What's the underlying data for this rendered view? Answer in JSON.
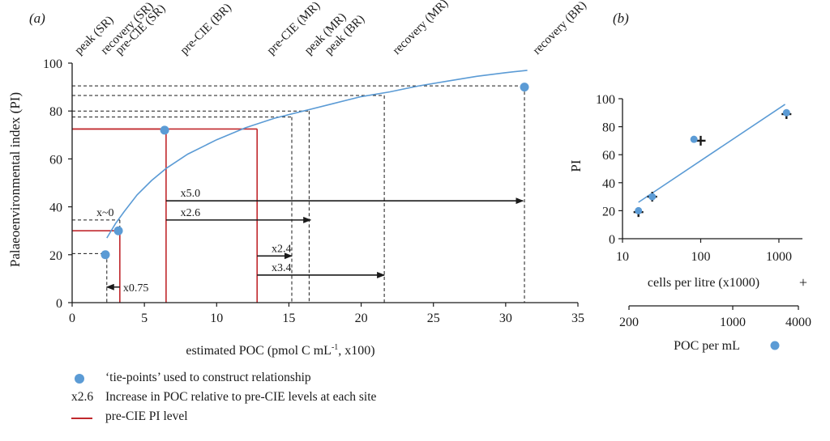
{
  "colors": {
    "curve": "#5b9bd5",
    "pre_cie": "#c0282d",
    "arrow": "#1a1a1a",
    "dashed": "#1a1a1a"
  },
  "chart_data": [
    {
      "type": "line",
      "panel_label": "(a)",
      "xlabel_main": "estimated POC (pmol C mL",
      "xlabel_sup": "-1",
      "xlabel_tail": ", x100)",
      "ylabel": "Palaeoenvironmental index (PI)",
      "xlim": [
        0,
        35
      ],
      "ylim": [
        0,
        100
      ],
      "xticks": [
        "0",
        "5",
        "10",
        "15",
        "20",
        "25",
        "30",
        "35"
      ],
      "xtick_values": [
        0,
        5,
        10,
        15,
        20,
        25,
        30,
        35
      ],
      "yticks": [
        "0",
        "20",
        "40",
        "60",
        "80",
        "100"
      ],
      "ytick_values": [
        0,
        20,
        40,
        60,
        80,
        100
      ],
      "curve": {
        "x": [
          2.4,
          3.0,
          3.6,
          4.5,
          5.5,
          6.5,
          8,
          10,
          12,
          14,
          16,
          18,
          20,
          22,
          24,
          26,
          28,
          30,
          31.5
        ],
        "y": [
          27,
          33,
          38,
          45,
          51,
          56,
          62,
          68,
          73,
          77,
          80,
          83,
          86,
          88,
          90.5,
          92.5,
          94.5,
          96,
          97
        ]
      },
      "tie_points": {
        "x": [
          2.3,
          3.2,
          6.4,
          31.3
        ],
        "y": [
          20,
          30,
          72,
          90
        ]
      },
      "pre_cie": [
        {
          "x": 3.3,
          "y": 30
        },
        {
          "x": 6.5,
          "y": 72.5
        },
        {
          "x": 12.8,
          "y": 72.5
        }
      ],
      "dashed_guides": [
        {
          "x": 2.4,
          "y": 20.5
        },
        {
          "x": 3.3,
          "y": 34.5
        },
        {
          "x": 15.2,
          "y": 77.5
        },
        {
          "x": 16.4,
          "y": 80
        },
        {
          "x": 21.6,
          "y": 86.5
        },
        {
          "x": 31.3,
          "y": 90.5
        }
      ],
      "arrows": [
        {
          "label": "x2.6",
          "from": 6.5,
          "to": 16.5,
          "y": 34.5
        },
        {
          "label": "x5.0",
          "from": 6.5,
          "to": 31.2,
          "y": 42.5
        },
        {
          "label": "x2.4",
          "from": 12.8,
          "to": 15.2,
          "y": 19.5
        },
        {
          "label": "x3.4",
          "from": 12.8,
          "to": 21.6,
          "y": 11.5
        },
        {
          "label": "x0.75",
          "from": 3.3,
          "to": 2.4,
          "y": 6.5
        }
      ],
      "small_labels": [
        {
          "label": "x~0",
          "x": 2.4,
          "y": 34.5
        }
      ],
      "top_labels": [
        {
          "text": "peak (SR)",
          "x": 0.5
        },
        {
          "text": "recovery (SR)",
          "x": 2.3
        },
        {
          "text": "pre-CIE (SR)",
          "x": 3.3
        },
        {
          "text": "pre-CIE (BR)",
          "x": 7.8
        },
        {
          "text": "pre-CIE (MR)",
          "x": 13.8
        },
        {
          "text": "peak (MR)",
          "x": 16.4
        },
        {
          "text": "peak (BR)",
          "x": 17.8
        },
        {
          "text": "recovery (MR)",
          "x": 22.5
        },
        {
          "text": "recovery (BR)",
          "x": 32.2
        }
      ]
    },
    {
      "type": "scatter",
      "panel_label": "(b)",
      "ylabel": "PI",
      "xscale": "log",
      "xlim": [
        10,
        2000
      ],
      "ylim": [
        0,
        100
      ],
      "xticks": [
        "10",
        "100",
        "1000"
      ],
      "xtick_values": [
        10,
        100,
        1000
      ],
      "yticks": [
        "0",
        "20",
        "40",
        "60",
        "80",
        "100"
      ],
      "ytick_values": [
        0,
        20,
        40,
        60,
        80,
        100
      ],
      "xlabel": "cells per litre (x1000)",
      "xlabel_marker": "+",
      "x2label": "POC per mL",
      "x2ticks": [
        "200",
        "1000",
        "4000"
      ],
      "series": [
        {
          "marker": "+",
          "x": [
            16,
            24,
            100,
            1250
          ],
          "y": [
            19,
            30,
            70,
            89
          ]
        },
        {
          "marker": "dot",
          "x": [
            16,
            24,
            82,
            1250
          ],
          "y": [
            20,
            30,
            71,
            90
          ]
        }
      ],
      "fit_line": {
        "x": [
          16,
          1200
        ],
        "y": [
          26,
          96
        ]
      }
    }
  ],
  "legend": [
    {
      "marker": "dot",
      "text": "‘tie-points’ used to construct relationship"
    },
    {
      "marker": "x2.6",
      "text": "Increase in POC relative to pre-CIE levels at each site"
    },
    {
      "marker": "red-line",
      "text": "pre-CIE PI level"
    }
  ]
}
